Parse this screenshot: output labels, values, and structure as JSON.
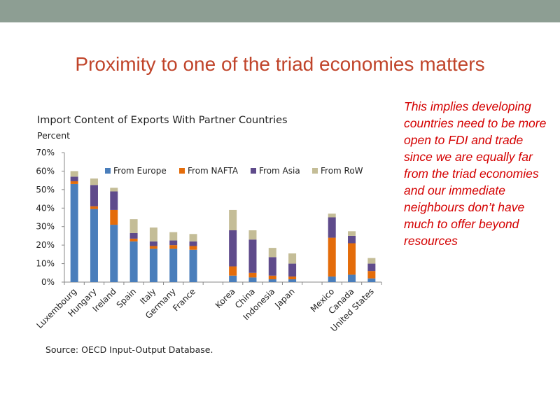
{
  "slide": {
    "title": "Proximity to one of the triad economies matters",
    "note": "This implies developing countries need to be more open to FDI and trade since we are equally far from the triad economies and our immediate neighbours don’t have much to offer beyond resources"
  },
  "colors": {
    "header_band": "#8d9e93",
    "title": "#c0442a",
    "note": "#d40000"
  },
  "chart_data": {
    "type": "bar",
    "stacked": true,
    "title": "Import Content of Exports With Partner Countries",
    "ylabel": "Percent",
    "source": "Source: OECD Input-Output Database.",
    "ylim": [
      0,
      70
    ],
    "yticks": [
      0,
      10,
      20,
      30,
      40,
      50,
      60,
      70
    ],
    "ytick_labels": [
      "0%",
      "10%",
      "20%",
      "30%",
      "40%",
      "50%",
      "60%",
      "70%"
    ],
    "grid": false,
    "legend_position": "top",
    "categories": [
      "Luxembourg",
      "Hungary",
      "Ireland",
      "Spain",
      "Italy",
      "Germany",
      "France",
      "",
      "Korea",
      "China",
      "Indonesia",
      "Japan",
      "",
      "Mexico",
      "Canada",
      "United States"
    ],
    "series": [
      {
        "name": "From Europe",
        "color": "#4a7ebb",
        "values": [
          53,
          39.5,
          31,
          22,
          18,
          18,
          17.5,
          0,
          3.5,
          2.5,
          1.5,
          1.5,
          0,
          3,
          4,
          2
        ]
      },
      {
        "name": "From NAFTA",
        "color": "#e46c0a",
        "values": [
          1.5,
          1.5,
          8,
          1.5,
          1.5,
          2,
          2,
          0,
          5,
          2.5,
          2,
          1.5,
          0,
          21,
          17,
          4
        ]
      },
      {
        "name": "From Asia",
        "color": "#5f4b8b",
        "values": [
          2.5,
          11.5,
          10,
          3,
          2.5,
          2.5,
          2.5,
          0,
          19.5,
          18,
          10,
          7,
          0,
          11,
          4,
          4
        ]
      },
      {
        "name": "From RoW",
        "color": "#c4bd97",
        "values": [
          3,
          3.5,
          2,
          7.5,
          7.5,
          4.5,
          4,
          0,
          11,
          5,
          5,
          5.5,
          0,
          2,
          2.5,
          3
        ]
      }
    ]
  }
}
